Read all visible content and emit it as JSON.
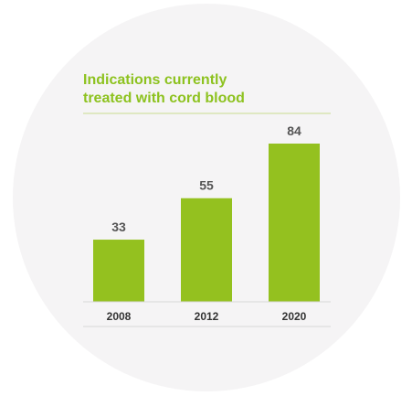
{
  "colors": {
    "background_circle": "#f5f4f5",
    "accent": "#8dc21f",
    "bar": "#94c11f",
    "divider": "#c9dd8e",
    "baseline": "#d8d8d8",
    "value_text": "#555555",
    "tick_text": "#333333"
  },
  "chart_data": {
    "type": "bar",
    "title": [
      "Indications currently",
      "treated with cord blood"
    ],
    "categories": [
      "2008",
      "2012",
      "2020"
    ],
    "values": [
      33,
      55,
      84
    ],
    "data_labels": [
      "33",
      "55",
      "84"
    ],
    "xlabel": "",
    "ylabel": "",
    "ylim": [
      0,
      84
    ],
    "grid": false,
    "legend": "none"
  }
}
